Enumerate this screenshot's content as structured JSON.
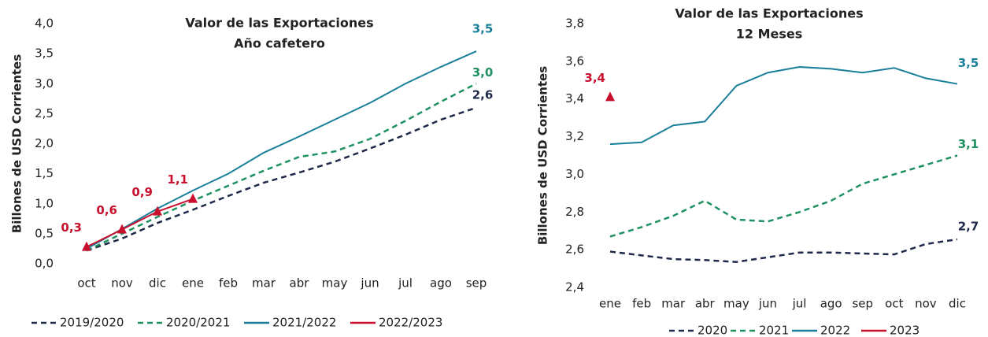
{
  "chart_data": [
    {
      "type": "line",
      "title": "Valor de las Exportaciones",
      "subtitle": "Año cafetero",
      "y_label": "Billones de USD Corrientes",
      "categories": [
        "oct",
        "nov",
        "dic",
        "ene",
        "feb",
        "mar",
        "abr",
        "may",
        "jun",
        "jul",
        "ago",
        "sep"
      ],
      "ylim": [
        0,
        4
      ],
      "yticks": [
        {
          "value": 0,
          "label": "0,0"
        },
        {
          "value": 0.5,
          "label": "0,5"
        },
        {
          "value": 1,
          "label": "1,0"
        },
        {
          "value": 1.5,
          "label": "1,5"
        },
        {
          "value": 2,
          "label": "2,0"
        },
        {
          "value": 2.5,
          "label": "2,5"
        },
        {
          "value": 3,
          "label": "3,0"
        },
        {
          "value": 3.5,
          "label": "3,5"
        },
        {
          "value": 4,
          "label": "4,0"
        }
      ],
      "legend": "bottom",
      "series": [
        {
          "name": "2019/2020",
          "color": "#1f2a4a",
          "style": "dashed",
          "values": [
            0.22,
            0.42,
            0.68,
            0.9,
            1.13,
            1.35,
            1.52,
            1.7,
            1.92,
            2.15,
            2.4,
            2.6
          ],
          "value_labels": [
            null,
            null,
            null,
            null,
            null,
            null,
            null,
            null,
            null,
            null,
            null,
            "2,6"
          ]
        },
        {
          "name": "2020/2021",
          "color": "#1e9160",
          "style": "dashed",
          "values": [
            0.22,
            0.5,
            0.78,
            1.05,
            1.3,
            1.55,
            1.78,
            1.87,
            2.08,
            2.38,
            2.7,
            3.0
          ],
          "value_labels": [
            null,
            null,
            null,
            null,
            null,
            null,
            null,
            null,
            null,
            null,
            null,
            "3,0"
          ]
        },
        {
          "name": "2021/2022",
          "color": "#1a7f9a",
          "style": "solid",
          "values": [
            0.25,
            0.58,
            0.92,
            1.22,
            1.5,
            1.85,
            2.12,
            2.4,
            2.68,
            3.0,
            3.28,
            3.54
          ],
          "value_labels": [
            null,
            null,
            null,
            null,
            null,
            null,
            null,
            null,
            null,
            null,
            null,
            "3,5"
          ]
        },
        {
          "name": "2022/2023",
          "color": "#c8102e",
          "style": "solid",
          "marker": "triangle",
          "values": [
            0.28,
            0.57,
            0.87,
            1.08,
            null,
            null,
            null,
            null,
            null,
            null,
            null,
            null
          ],
          "value_labels": [
            "0,3",
            "0,6",
            "0,9",
            "1,1",
            null,
            null,
            null,
            null,
            null,
            null,
            null,
            null
          ]
        }
      ]
    },
    {
      "type": "line",
      "title": "Valor de las Exportaciones",
      "subtitle": "12 Meses",
      "y_label": "Billones de USD Corrientes",
      "categories": [
        "ene",
        "feb",
        "mar",
        "abr",
        "may",
        "jun",
        "jul",
        "ago",
        "sep",
        "oct",
        "nov",
        "dic"
      ],
      "ylim": [
        2.4,
        3.8
      ],
      "yticks": [
        {
          "value": 2.4,
          "label": "2,4"
        },
        {
          "value": 2.6,
          "label": "2,6"
        },
        {
          "value": 2.8,
          "label": "2,8"
        },
        {
          "value": 3.0,
          "label": "3,0"
        },
        {
          "value": 3.2,
          "label": "3,2"
        },
        {
          "value": 3.4,
          "label": "3,4"
        },
        {
          "value": 3.6,
          "label": "3,6"
        },
        {
          "value": 3.8,
          "label": "3,8"
        }
      ],
      "legend": "bottom",
      "series": [
        {
          "name": "2020",
          "color": "#1f2a4a",
          "style": "dashed",
          "values": [
            2.59,
            2.57,
            2.55,
            2.545,
            2.535,
            2.56,
            2.585,
            2.585,
            2.58,
            2.575,
            2.63,
            2.655
          ],
          "value_labels": [
            null,
            null,
            null,
            null,
            null,
            null,
            null,
            null,
            null,
            null,
            null,
            "2,7"
          ]
        },
        {
          "name": "2021",
          "color": "#1e9160",
          "style": "dashed",
          "values": [
            2.67,
            2.72,
            2.78,
            2.86,
            2.76,
            2.75,
            2.8,
            2.86,
            2.95,
            3.0,
            3.05,
            3.1
          ],
          "value_labels": [
            null,
            null,
            null,
            null,
            null,
            null,
            null,
            null,
            null,
            null,
            null,
            "3,1"
          ]
        },
        {
          "name": "2022",
          "color": "#1a7f9a",
          "style": "solid",
          "values": [
            3.16,
            3.17,
            3.26,
            3.28,
            3.47,
            3.54,
            3.57,
            3.56,
            3.54,
            3.565,
            3.51,
            3.48
          ],
          "value_labels": [
            null,
            null,
            null,
            null,
            null,
            null,
            null,
            null,
            null,
            null,
            null,
            "3,5"
          ]
        },
        {
          "name": "2023",
          "color": "#c8102e",
          "style": "solid",
          "marker": "triangle",
          "values": [
            3.41,
            null,
            null,
            null,
            null,
            null,
            null,
            null,
            null,
            null,
            null,
            null
          ],
          "value_labels": [
            "3,4",
            null,
            null,
            null,
            null,
            null,
            null,
            null,
            null,
            null,
            null,
            null
          ]
        }
      ]
    }
  ]
}
